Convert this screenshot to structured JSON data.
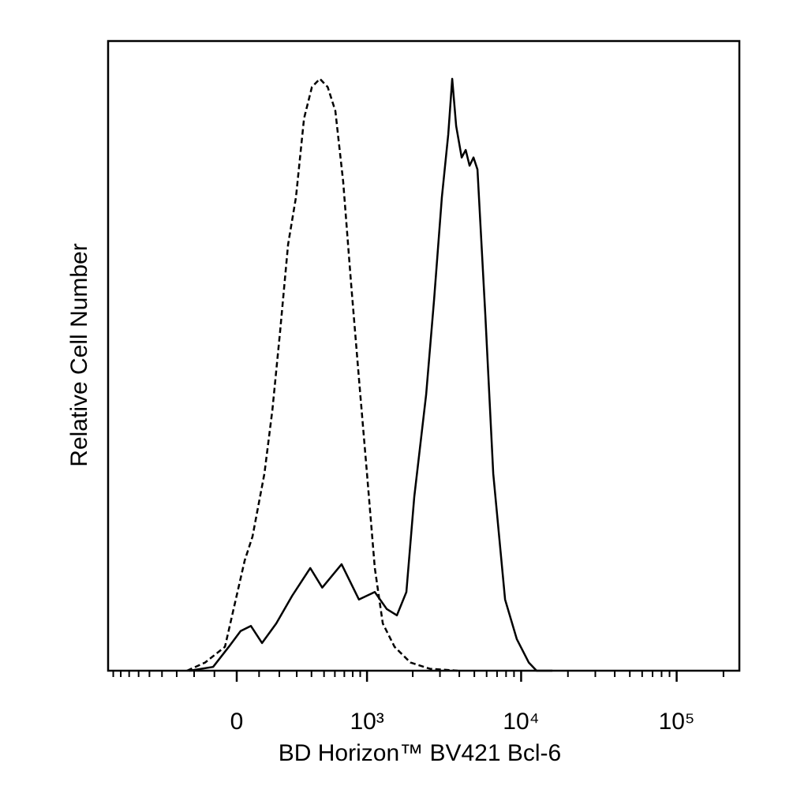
{
  "chart_data": {
    "type": "line",
    "xlabel": "BD Horizon™ BV421 Bcl-6",
    "ylabel": "Relative Cell Number",
    "xscale": "biexponential",
    "xlim": [
      -975,
      253000
    ],
    "ylim": [
      0,
      100
    ],
    "xticks": [
      0,
      {
        "value": 1000,
        "label": "10³"
      },
      {
        "value": 10000,
        "label": "10⁴"
      },
      {
        "value": 100000,
        "label": "10⁵"
      }
    ],
    "xminorticks": [
      -900,
      -800,
      -700,
      -600,
      -500,
      -400,
      -300,
      -200,
      -100,
      100,
      200,
      300,
      400,
      500,
      600,
      700,
      800,
      900,
      2000,
      3000,
      4000,
      5000,
      6000,
      7000,
      8000,
      9000,
      20000,
      30000,
      40000,
      50000,
      60000,
      70000,
      80000,
      90000,
      200000
    ],
    "series": [
      {
        "color": "#000000",
        "line_style": "dashed",
        "x": [
          -239,
          -144,
          -52,
          35,
          70,
          125,
          164,
          204,
          248,
          295,
          347,
          403,
          465,
          532,
          605,
          687,
          780,
          882,
          1000,
          1127,
          1273,
          1521,
          1931,
          2590,
          3909
        ],
        "values": [
          0,
          1.3,
          3.8,
          17.5,
          21.3,
          31.3,
          41.4,
          53.9,
          67.7,
          75.2,
          87.7,
          92.7,
          94,
          92.7,
          88.9,
          77.7,
          61.4,
          46.4,
          31.3,
          16.3,
          7.5,
          3.8,
          1.3,
          0.3,
          0
        ]
      },
      {
        "color": "#000000",
        "line_style": "solid",
        "x": [
          -226,
          -106,
          -35,
          17,
          63,
          114,
          184,
          272,
          391,
          485,
          670,
          882,
          1127,
          1352,
          1577,
          1818,
          2046,
          2444,
          2747,
          3089,
          3395,
          3600,
          3819,
          4143,
          4396,
          4660,
          4939,
          5239,
          5887,
          6617,
          7885,
          9385,
          11197,
          12563,
          15890
        ],
        "values": [
          0,
          0.6,
          3.8,
          6.3,
          7.1,
          4.4,
          7.5,
          11.9,
          16.3,
          13.2,
          16.9,
          11.3,
          12.5,
          9.8,
          8.8,
          12.5,
          27.6,
          43.9,
          58.9,
          75.2,
          85.2,
          94,
          86.5,
          81.5,
          82.7,
          80.2,
          81.5,
          79.6,
          56.4,
          31.3,
          11.3,
          5,
          1.3,
          0,
          0
        ]
      }
    ]
  }
}
